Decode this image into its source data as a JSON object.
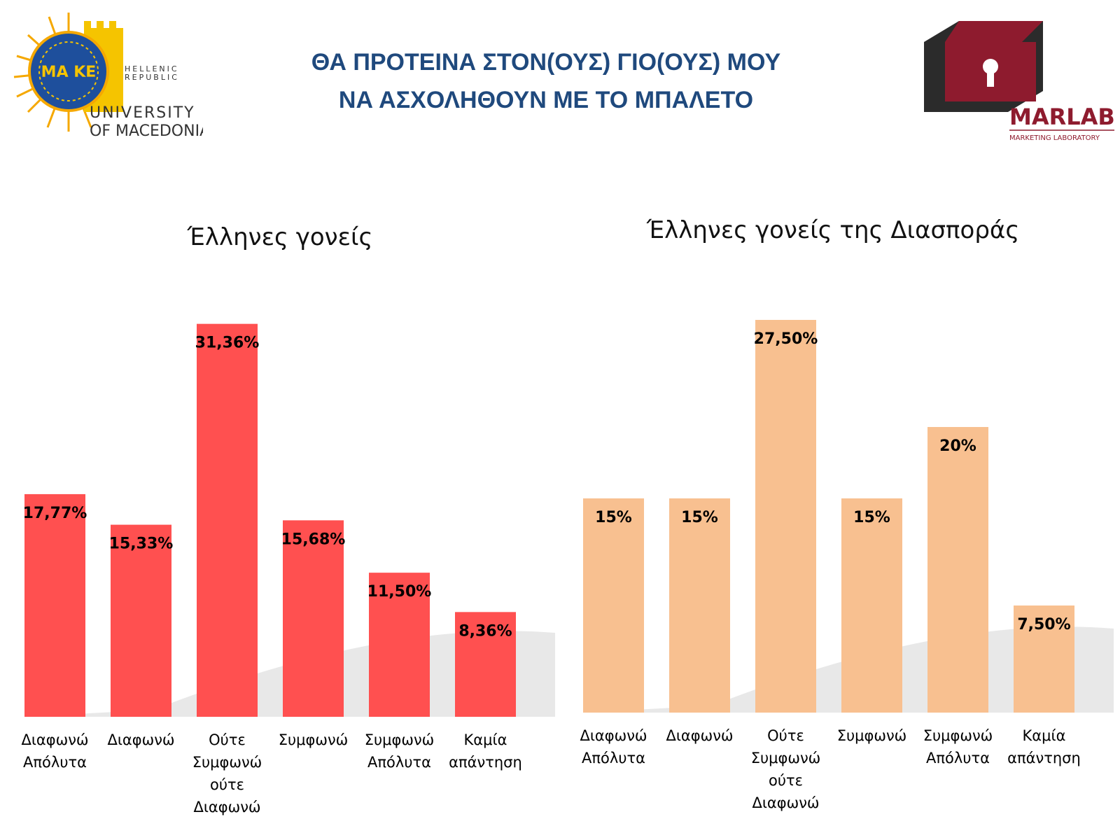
{
  "header": {
    "title_line1": "ΘΑ ΠΡΟΤΕΙΝΑ ΣΤΟΝ(ΟΥΣ) ΓΙΟ(ΟΥΣ) ΜΟΥ",
    "title_line2": "ΝΑ ΑΣΧΟΛΗΘΟΥΝ ΜΕ ΤΟ ΜΠΑΛΕΤΟ"
  },
  "logos": {
    "left": {
      "line1": "HELLENIC",
      "line2": "REPUBLIC",
      "line3": "UNIVERSITY",
      "line4": "OF MACEDONIA",
      "seal_text": "ΜΑ ΚΕ"
    },
    "right": {
      "name": "MARLAB",
      "subtitle": "MARKETING LABORATORY"
    }
  },
  "colors": {
    "title": "#1f497d",
    "series_greek": "#ff5050",
    "series_diaspora": "#f8c090",
    "label_text": "#000000",
    "marlab_red": "#8e1b2e"
  },
  "chart_data": [
    {
      "type": "bar",
      "title": "Έλληνες γονείς",
      "categories": [
        [
          "Διαφωνώ",
          "Απόλυτα"
        ],
        [
          "Διαφωνώ"
        ],
        [
          "Ούτε",
          "Συμφωνώ",
          "ούτε",
          "Διαφωνώ"
        ],
        [
          "Συμφωνώ"
        ],
        [
          "Συμφωνώ",
          "Απόλυτα"
        ],
        [
          "Καμία",
          "απάντηση"
        ]
      ],
      "values": [
        17.77,
        15.33,
        31.36,
        15.68,
        11.5,
        8.36
      ],
      "value_labels": [
        "17,77%",
        "15,33%",
        "31,36%",
        "15,68%",
        "11,50%",
        "8,36%"
      ],
      "unit": "%",
      "color_key": "series_greek"
    },
    {
      "type": "bar",
      "title": "Έλληνες γονείς της Διασποράς",
      "categories": [
        [
          "Διαφωνώ",
          "Απόλυτα"
        ],
        [
          "Διαφωνώ"
        ],
        [
          "Ούτε",
          "Συμφωνώ",
          "ούτε",
          "Διαφωνώ"
        ],
        [
          "Συμφωνώ"
        ],
        [
          "Συμφωνώ",
          "Απόλυτα"
        ],
        [
          "Καμία",
          "απάντηση"
        ]
      ],
      "values": [
        15,
        15,
        27.5,
        15,
        20,
        7.5
      ],
      "value_labels": [
        "15%",
        "15%",
        "27,50%",
        "15%",
        "20%",
        "7,50%"
      ],
      "unit": "%",
      "color_key": "series_diaspora"
    }
  ]
}
